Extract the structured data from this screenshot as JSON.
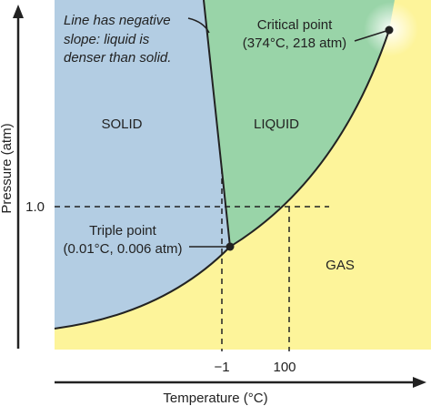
{
  "labels": {
    "annotation_line1": "Line has negative",
    "annotation_line2": "slope: liquid is",
    "annotation_line3": "denser than solid.",
    "critical_title": "Critical point",
    "critical_values": "(374°C, 218 atm)",
    "solid": "SOLID",
    "liquid": "LIQUID",
    "gas": "GAS",
    "triple_title": "Triple point",
    "triple_values": "(0.01°C, 0.006 atm)",
    "y_tick": "1.0",
    "x_tick_1": "−1",
    "x_tick_2": "100",
    "x_axis": "Temperature (°C)",
    "y_axis": "Pressure (atm)"
  },
  "colors": {
    "solid_region": "#b3cde3",
    "liquid_region": "#99d4a8",
    "gas_region": "#fdf49a",
    "lines": "#222222"
  }
}
